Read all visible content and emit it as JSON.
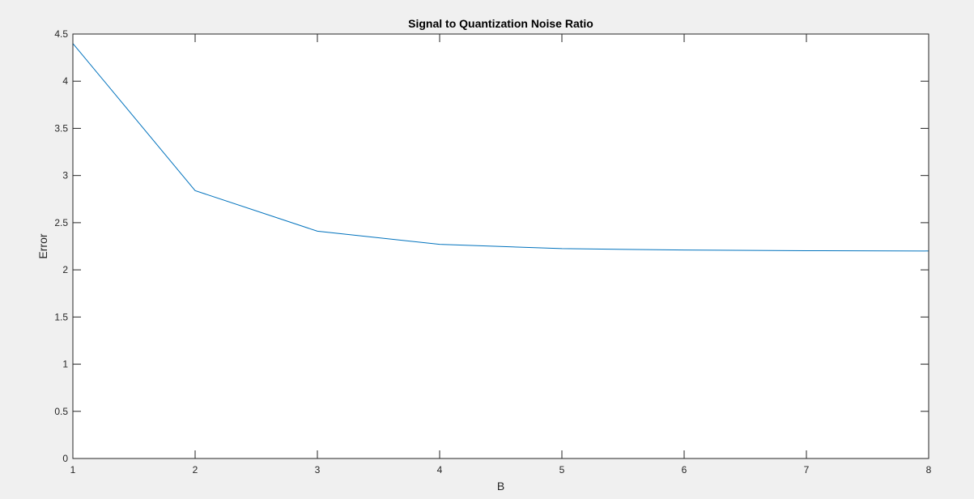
{
  "chart_data": {
    "type": "line",
    "title": "Signal to Quantization Noise Ratio",
    "xlabel": "B",
    "ylabel": "Error",
    "xlim": [
      1,
      8
    ],
    "ylim": [
      0,
      4.5
    ],
    "x_ticks": [
      "1",
      "2",
      "3",
      "4",
      "5",
      "6",
      "7",
      "8"
    ],
    "y_ticks": [
      "0",
      "0.5",
      "1",
      "1.5",
      "2",
      "2.5",
      "3",
      "3.5",
      "4",
      "4.5"
    ],
    "grid": false,
    "series": [
      {
        "color": "#0072bd",
        "x": [
          1,
          2,
          3,
          4,
          5,
          6,
          7,
          8
        ],
        "values": [
          4.4,
          2.84,
          2.41,
          2.27,
          2.225,
          2.21,
          2.203,
          2.2
        ]
      },
      {
        "color": "#0072bd",
        "x": [
          1,
          2,
          3,
          4,
          5,
          6,
          7,
          8
        ],
        "values": [
          0,
          0,
          0,
          0,
          0,
          0,
          0,
          0
        ]
      }
    ]
  }
}
